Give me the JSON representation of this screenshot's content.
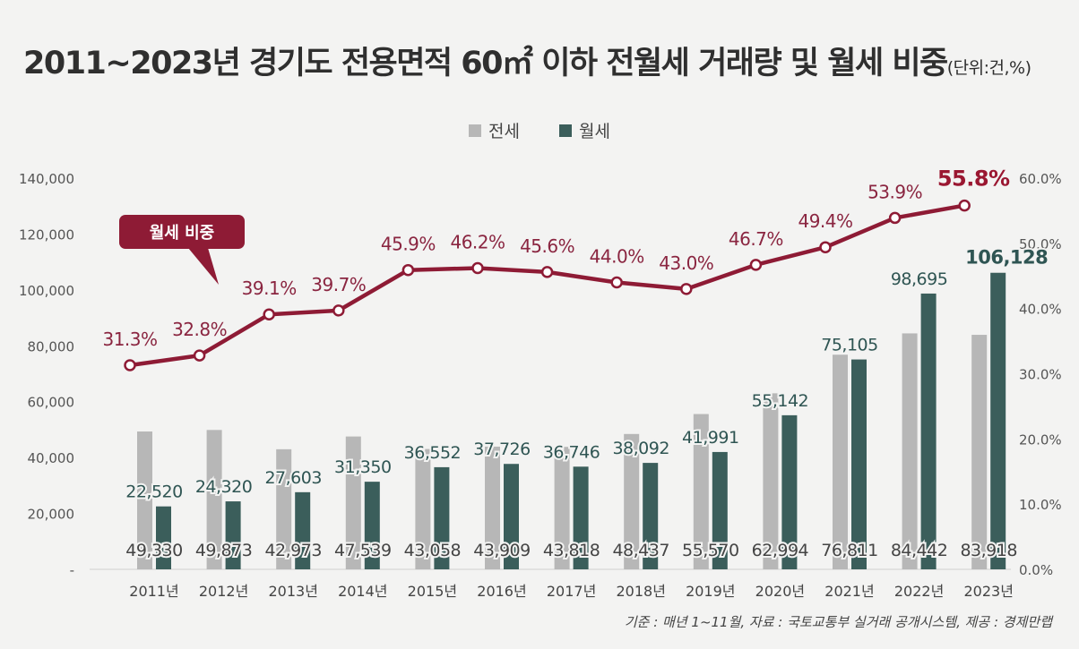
{
  "header": {
    "title_main": "2011~2023년 경기도 전용면적 60㎡ 이하 전월세 거래량 및 월세 비중",
    "title_unit": "(단위:건,%)"
  },
  "footer": {
    "note": "기준 : 매년 1~11월, 자료 : 국토교통부 실거래 공개시스템, 제공 : 경제만랩"
  },
  "chart_data": {
    "type": "bar",
    "title": "2011~2023년 경기도 전용면적 60㎡ 이하 전월세 거래량 및 월세 비중",
    "categories": [
      "2011년",
      "2012년",
      "2013년",
      "2014년",
      "2015년",
      "2016년",
      "2017년",
      "2018년",
      "2019년",
      "2020년",
      "2021년",
      "2022년",
      "2023년"
    ],
    "series": [
      {
        "name": "전세",
        "values": [
          49330,
          49873,
          42973,
          47539,
          43058,
          43909,
          43818,
          48437,
          55570,
          62994,
          76811,
          84442,
          83918
        ],
        "labels": [
          "49,330",
          "49,873",
          "42,973",
          "47,539",
          "43,058",
          "43,909",
          "43,818",
          "48,437",
          "55,570",
          "62,994",
          "76,811",
          "84,442",
          "83,918"
        ]
      },
      {
        "name": "월세",
        "values": [
          22520,
          24320,
          27603,
          31350,
          36552,
          37726,
          36746,
          38092,
          41991,
          55142,
          75105,
          98695,
          106128
        ],
        "labels": [
          "22,520",
          "24,320",
          "27,603",
          "31,350",
          "36,552",
          "37,726",
          "36,746",
          "38,092",
          "41,991",
          "55,142",
          "75,105",
          "98,695",
          "106,128"
        ]
      }
    ],
    "line_series": {
      "name": "월세 비중",
      "values": [
        31.3,
        32.8,
        39.1,
        39.7,
        45.9,
        46.2,
        45.6,
        44.0,
        43.0,
        46.7,
        49.4,
        53.9,
        55.8
      ],
      "labels": [
        "31.3%",
        "32.8%",
        "39.1%",
        "39.7%",
        "45.9%",
        "46.2%",
        "45.6%",
        "44.0%",
        "43.0%",
        "46.7%",
        "49.4%",
        "53.9%",
        "55.8%"
      ]
    },
    "callout": "월세 비중",
    "y_left": {
      "range": [
        0,
        140000
      ],
      "ticks": [
        0,
        20000,
        40000,
        60000,
        80000,
        100000,
        120000,
        140000
      ],
      "tick_labels": [
        "-",
        "20,000",
        "40,000",
        "60,000",
        "80,000",
        "100,000",
        "120,000",
        "140,000"
      ]
    },
    "y_right": {
      "range": [
        0,
        60
      ],
      "ticks": [
        0,
        10,
        20,
        30,
        40,
        50,
        60
      ],
      "tick_labels": [
        "0.0%",
        "10.0%",
        "20.0%",
        "30.0%",
        "40.0%",
        "50.0%",
        "60.0%"
      ]
    },
    "colors": {
      "jeonse": "#b7b7b7",
      "wolse": "#3b5e5b",
      "ratio": "#8e1b35",
      "ratio_label": "#8a2540",
      "wolse_label": "#2f5553",
      "axis_text": "#555555"
    },
    "legend_position": "top-center",
    "grid": false
  }
}
